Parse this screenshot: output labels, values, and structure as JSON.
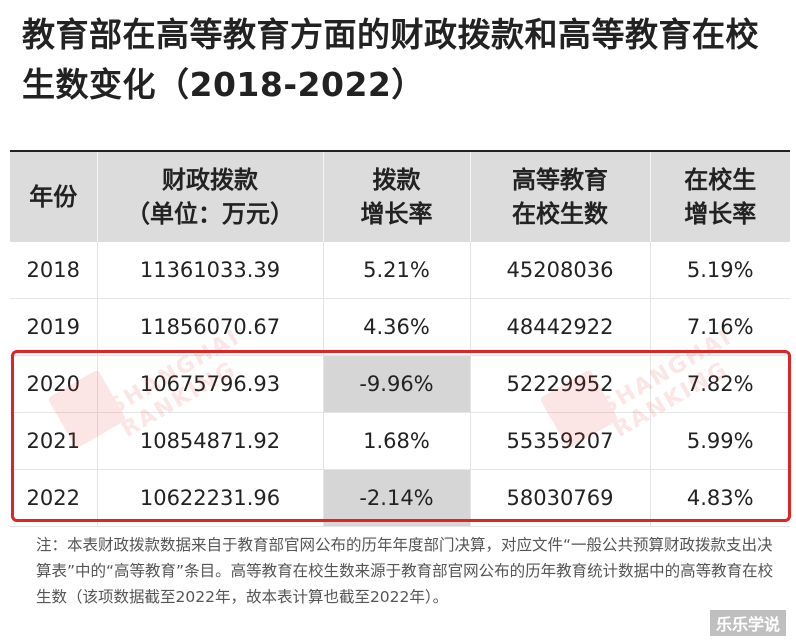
{
  "title": "教育部在高等教育方面的财政拨款和高等教育在校生数变化（2018-2022）",
  "table": {
    "headers": [
      {
        "line1": "年份",
        "line2": ""
      },
      {
        "line1": "财政拨款",
        "line2": "（单位：万元）"
      },
      {
        "line1": "拨款",
        "line2": "增长率"
      },
      {
        "line1": "高等教育",
        "line2": "在校生数"
      },
      {
        "line1": "在校生",
        "line2": "增长率"
      }
    ],
    "rows": [
      {
        "year": "2018",
        "funding": "11361033.39",
        "funding_growth": "5.21%",
        "students": "45208036",
        "student_growth": "5.19%",
        "negative": false
      },
      {
        "year": "2019",
        "funding": "11856070.67",
        "funding_growth": "4.36%",
        "students": "48442922",
        "student_growth": "7.16%",
        "negative": false
      },
      {
        "year": "2020",
        "funding": "10675796.93",
        "funding_growth": "-9.96%",
        "students": "52229952",
        "student_growth": "7.82%",
        "negative": true
      },
      {
        "year": "2021",
        "funding": "10854871.92",
        "funding_growth": "1.68%",
        "students": "55359207",
        "student_growth": "5.99%",
        "negative": false
      },
      {
        "year": "2022",
        "funding": "10622231.96",
        "funding_growth": "-2.14%",
        "students": "58030769",
        "student_growth": "4.83%",
        "negative": true
      }
    ]
  },
  "note": "注：本表财政拨款数据来自于教育部官网公布的历年年度部门决算，对应文件“一般公共预算财政拨款支出决算表”中的“高等教育”条目。高等教育在校生数来源于教育部官网公布的历年教育统计数据中的高等教育在校生数（该项数据截至2022年，故本表计算也截至2022年）。",
  "watermark_text": "SHANGHAI RANKING",
  "corner_watermark": "乐乐学说",
  "colors": {
    "highlight_border": "#e02424",
    "header_bg": "#dcdcdc",
    "negative_cell_bg": "#d6d6d6",
    "watermark": "#e03030"
  }
}
